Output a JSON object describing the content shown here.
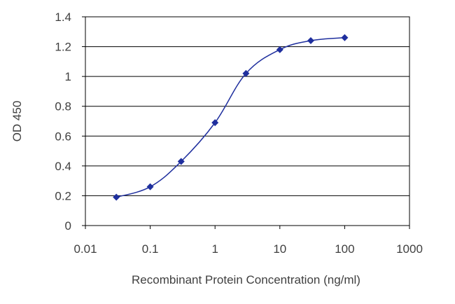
{
  "chart_data": {
    "type": "scatter",
    "xlabel": "Recombinant Protein Concentration (ng/ml)",
    "ylabel": "OD 450",
    "x_scale": "log",
    "xlim": [
      0.01,
      1000
    ],
    "ylim": [
      0,
      1.4
    ],
    "x_ticks": [
      "0.01",
      "0.1",
      "1",
      "10",
      "100",
      "1000"
    ],
    "y_ticks": [
      "0",
      "0.2",
      "0.4",
      "0.6",
      "0.8",
      "1",
      "1.2",
      "1.4"
    ],
    "grid": "horizontal",
    "colors": {
      "series": "#1f2f9e",
      "grid": "#000000",
      "text": "#404040"
    },
    "series": [
      {
        "x": [
          0.03,
          0.1,
          0.3,
          1,
          3,
          10,
          30,
          100
        ],
        "y": [
          0.19,
          0.26,
          0.43,
          0.69,
          1.02,
          1.18,
          1.24,
          1.26
        ]
      }
    ]
  }
}
